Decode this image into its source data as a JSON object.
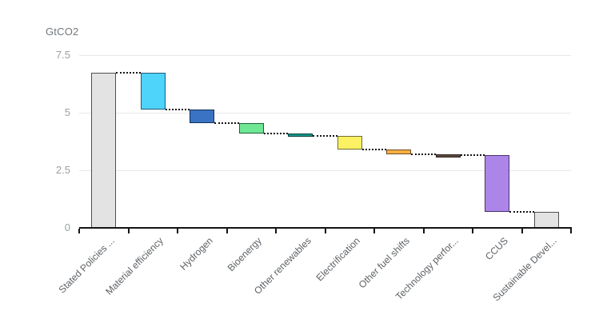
{
  "chart_data": {
    "type": "bar",
    "subtype": "waterfall",
    "title": "",
    "unit_label": "GtCO2",
    "xlabel": "",
    "ylabel": "GtCO2",
    "ylim": [
      0,
      7.5
    ],
    "yticks": [
      0,
      2.5,
      5,
      7.5
    ],
    "ytick_labels": [
      "0",
      "2.5",
      "5",
      "7.5"
    ],
    "grid": true,
    "legend": false,
    "categories": [
      "Stated Policies ...",
      "Material efficiency",
      "Hydrogen",
      "Bioenergy",
      "Other renewables",
      "Electrification",
      "Other fuel shifts",
      "Technology perfor...",
      "CCUS",
      "Sustainable Devel..."
    ],
    "bars": [
      {
        "label": "Stated Policies ...",
        "role": "total",
        "top": 6.75,
        "bottom": 0,
        "change": null,
        "fill": "#e3e3e3",
        "border": "#4f4f4f"
      },
      {
        "label": "Material efficiency",
        "role": "decrease",
        "top": 6.75,
        "bottom": 5.15,
        "change": -1.6,
        "fill": "#4ed3fb",
        "border": "#1c5b77"
      },
      {
        "label": "Hydrogen",
        "role": "decrease",
        "top": 5.15,
        "bottom": 4.55,
        "change": -0.6,
        "fill": "#3a73c3",
        "border": "#122f57"
      },
      {
        "label": "Bioenergy",
        "role": "decrease",
        "top": 4.55,
        "bottom": 4.1,
        "change": -0.45,
        "fill": "#6fe794",
        "border": "#1e5e3c"
      },
      {
        "label": "Other renewables",
        "role": "decrease",
        "top": 4.1,
        "bottom": 4.0,
        "change": -0.1,
        "fill": "#159a8d",
        "border": "#053c37"
      },
      {
        "label": "Electrification",
        "role": "decrease",
        "top": 4.0,
        "bottom": 3.4,
        "change": -0.6,
        "fill": "#fcf163",
        "border": "#6f6d34"
      },
      {
        "label": "Other fuel shifts",
        "role": "decrease",
        "top": 3.4,
        "bottom": 3.2,
        "change": -0.2,
        "fill": "#f9b045",
        "border": "#6f4c1d"
      },
      {
        "label": "Technology perfor...",
        "role": "decrease",
        "top": 3.2,
        "bottom": 3.15,
        "change": -0.05,
        "fill": "#5d4a42",
        "border": "#2e211c"
      },
      {
        "label": "CCUS",
        "role": "decrease",
        "top": 3.15,
        "bottom": 0.7,
        "change": -2.45,
        "fill": "#ac85e9",
        "border": "#46336b"
      },
      {
        "label": "Sustainable Devel...",
        "role": "total",
        "top": 0.7,
        "bottom": 0,
        "change": null,
        "fill": "#e3e3e3",
        "border": "#4f4f4f"
      }
    ],
    "colors": {
      "axis": "#141414",
      "grid": "#e8e8e8",
      "connector": "#141414",
      "ytick_text": "#9aa0a5",
      "xtick_text": "#5d6165",
      "unit_text": "#71767b",
      "background": "#ffffff"
    }
  }
}
